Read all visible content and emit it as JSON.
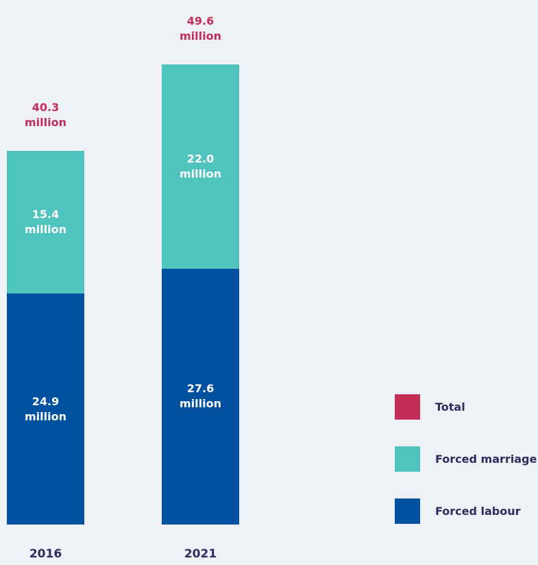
{
  "chart_data": {
    "type": "stacked_bar",
    "categories": [
      "2016",
      "2021"
    ],
    "series": [
      {
        "name": "Forced labour",
        "color": "#0251a1",
        "values": [
          24.9,
          27.6
        ],
        "value_labels": [
          "24.9\nmillion",
          "27.6\nmillion"
        ]
      },
      {
        "name": "Forced marriage",
        "color": "#4fc3bd",
        "values": [
          15.4,
          22.0
        ],
        "value_labels": [
          "15.4\nmillion",
          "22.0\nmillion"
        ]
      },
      {
        "name": "Total",
        "color": "#c22e57",
        "values": [
          40.3,
          49.6
        ],
        "value_labels": [
          "40.3\nmillion",
          "49.6\nmillion"
        ],
        "role": "total"
      }
    ]
  }
}
